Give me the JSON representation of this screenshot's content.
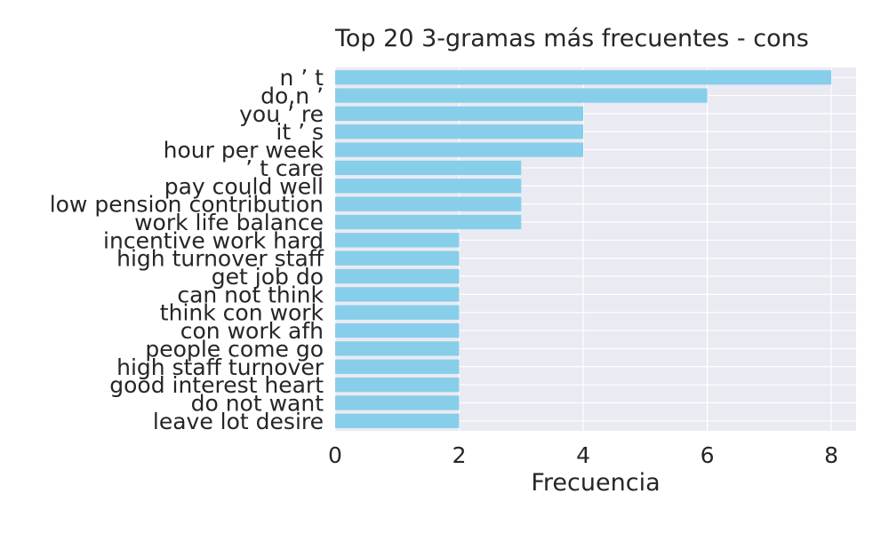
{
  "chart_data": {
    "type": "bar",
    "orientation": "horizontal",
    "title": "Top 20 3-gramas más frecuentes - cons",
    "xlabel": "Frecuencia",
    "ylabel": "",
    "xlim": [
      0,
      8.4
    ],
    "xticks": [
      0,
      2,
      4,
      6,
      8
    ],
    "grid": true,
    "colors": {
      "bar": "#87CEEB",
      "background": "#EAEAF2",
      "grid": "#FFFFFF",
      "text": "#262626"
    },
    "categories": [
      "n ’ t",
      "do,n ’",
      "you ’ re",
      "it ’ s",
      "hour per week",
      "’ t care",
      "pay could well",
      "low pension contribution",
      "work life balance",
      "incentive work hard",
      "high turnover staff",
      "get job do",
      "can not think",
      "think con work",
      "con work afh",
      "people come go",
      "high staff turnover",
      "good interest heart",
      "do not want",
      "leave lot desire"
    ],
    "values": [
      8,
      6,
      4,
      4,
      4,
      3,
      3,
      3,
      3,
      2,
      2,
      2,
      2,
      2,
      2,
      2,
      2,
      2,
      2,
      2
    ]
  }
}
